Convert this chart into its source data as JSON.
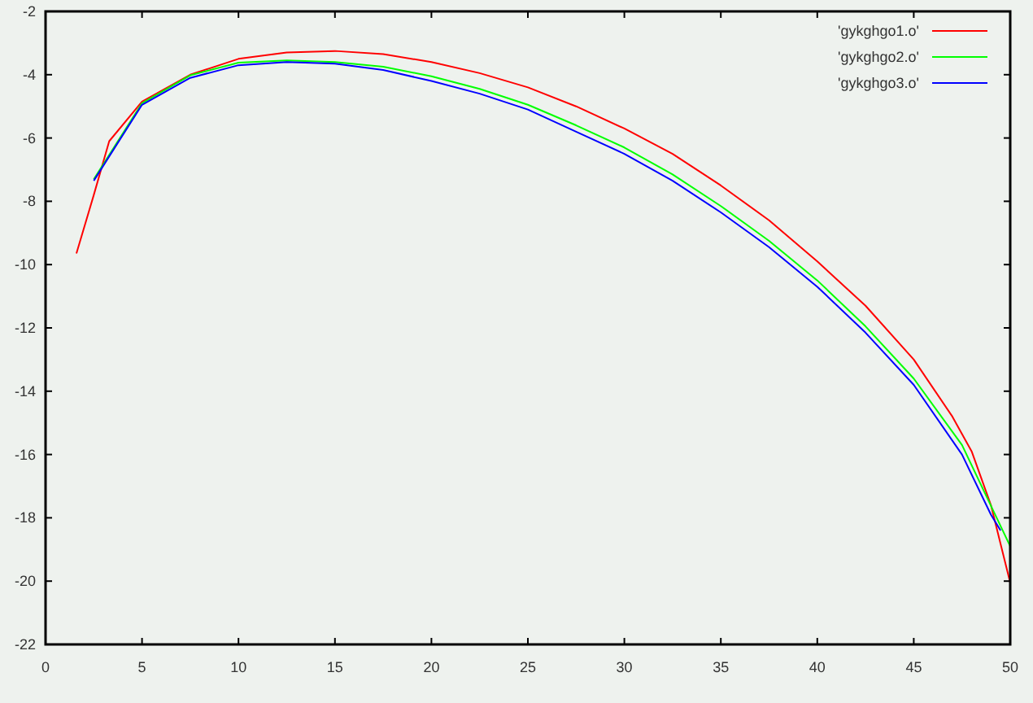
{
  "chart_data": {
    "type": "line",
    "xlim": [
      0,
      50
    ],
    "xticks": [
      0,
      5,
      10,
      15,
      20,
      25,
      30,
      35,
      40,
      45,
      50
    ],
    "ylim": [
      -22,
      -2
    ],
    "yticks": [
      -22,
      -20,
      -18,
      -16,
      -14,
      -12,
      -10,
      -8,
      -6,
      -4,
      -2
    ],
    "grid": false,
    "legend": "top right",
    "marker": "none",
    "line_style": "solid",
    "series": [
      {
        "name": "'gykghgo1.o'",
        "color": "#ff0000",
        "x": [
          1.6,
          2.5,
          3.3,
          5,
          7.5,
          10,
          12.5,
          15,
          17.5,
          20,
          22.5,
          25,
          27.5,
          30,
          32.5,
          35,
          37.5,
          40,
          42.5,
          45,
          47,
          48,
          49,
          50
        ],
        "values": [
          -9.65,
          -7.8,
          -6.1,
          -4.85,
          -4.0,
          -3.5,
          -3.3,
          -3.25,
          -3.35,
          -3.6,
          -3.95,
          -4.4,
          -5.0,
          -5.7,
          -6.5,
          -7.5,
          -8.6,
          -9.9,
          -11.3,
          -13.0,
          -14.8,
          -15.9,
          -17.6,
          -20.05
        ]
      },
      {
        "name": "'gykghgo2.o'",
        "color": "#00ff00",
        "x": [
          2.5,
          5,
          7.5,
          10,
          12.5,
          15,
          17.5,
          20,
          22.5,
          25,
          27.5,
          30,
          32.5,
          35,
          37.5,
          40,
          42.5,
          45,
          47.5,
          50
        ],
        "values": [
          -7.3,
          -4.9,
          -4.02,
          -3.62,
          -3.55,
          -3.6,
          -3.75,
          -4.05,
          -4.45,
          -4.95,
          -5.6,
          -6.3,
          -7.15,
          -8.15,
          -9.25,
          -10.5,
          -11.95,
          -13.6,
          -15.7,
          -18.9
        ]
      },
      {
        "name": "'gykghgo3.o'",
        "color": "#0000ff",
        "x": [
          2.5,
          5,
          7.5,
          10,
          12.5,
          15,
          17.5,
          20,
          22.5,
          25,
          27.5,
          30,
          32.5,
          35,
          37.5,
          40,
          42.5,
          45,
          47.5,
          49,
          49.5
        ],
        "values": [
          -7.35,
          -4.95,
          -4.1,
          -3.7,
          -3.6,
          -3.65,
          -3.85,
          -4.2,
          -4.6,
          -5.1,
          -5.8,
          -6.5,
          -7.35,
          -8.35,
          -9.45,
          -10.7,
          -12.15,
          -13.8,
          -16.0,
          -17.9,
          -18.4
        ]
      }
    ]
  }
}
